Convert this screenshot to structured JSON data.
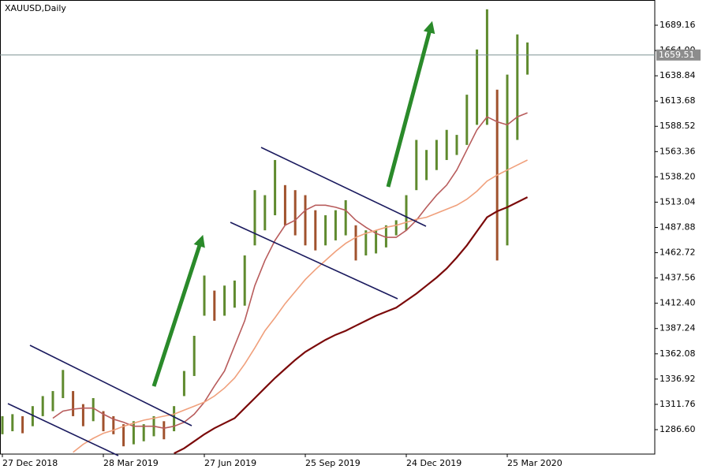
{
  "chart_data": {
    "type": "price-bars",
    "title": "XAUUSD,Daily",
    "categories": [
      "27 Dec 2018",
      null,
      null,
      null,
      null,
      null,
      null,
      null,
      null,
      null,
      "28 Mar 2019",
      null,
      null,
      null,
      null,
      null,
      null,
      null,
      null,
      null,
      "27 Jun 2019",
      null,
      null,
      null,
      null,
      null,
      null,
      null,
      null,
      null,
      "25 Sep 2019",
      null,
      null,
      null,
      null,
      null,
      null,
      null,
      null,
      null,
      "24 Dec 2019",
      null,
      null,
      null,
      null,
      null,
      null,
      null,
      null,
      null,
      "25 Mar 2020",
      null,
      null
    ],
    "high": [
      1300,
      1302,
      1300,
      1310,
      1320,
      1325,
      1346,
      1325,
      1312,
      1318,
      1305,
      1300,
      1292,
      1295,
      1292,
      1300,
      1295,
      1310,
      1345,
      1380,
      1440,
      1425,
      1430,
      1435,
      1460,
      1525,
      1520,
      1555,
      1530,
      1525,
      1520,
      1505,
      1500,
      1505,
      1515,
      1490,
      1485,
      1485,
      1490,
      1495,
      1520,
      1575,
      1565,
      1575,
      1585,
      1580,
      1620,
      1665,
      1705,
      1625,
      1640,
      1680,
      1672
    ],
    "low": [
      1282,
      1285,
      1283,
      1290,
      1300,
      1305,
      1318,
      1300,
      1290,
      1295,
      1285,
      1282,
      1270,
      1272,
      1275,
      1280,
      1277,
      1285,
      1320,
      1340,
      1400,
      1395,
      1400,
      1408,
      1410,
      1470,
      1485,
      1500,
      1490,
      1480,
      1470,
      1465,
      1470,
      1475,
      1480,
      1455,
      1460,
      1462,
      1468,
      1480,
      1485,
      1525,
      1535,
      1545,
      1555,
      1560,
      1570,
      1590,
      1590,
      1455,
      1470,
      1575,
      1640
    ],
    "up_color": "#5f8a2e",
    "down_color": "#a0522d",
    "series": [
      {
        "color": "#b85c5c",
        "values": [
          null,
          null,
          null,
          null,
          null,
          1298,
          1305,
          1307,
          1308,
          1308,
          1302,
          1297,
          1294,
          1290,
          1290,
          1290,
          1288,
          1290,
          1294,
          1302,
          1314,
          1330,
          1345,
          1370,
          1395,
          1430,
          1455,
          1475,
          1490,
          1495,
          1505,
          1510,
          1510,
          1508,
          1505,
          1495,
          1488,
          1482,
          1478,
          1478,
          1485,
          1495,
          1508,
          1520,
          1530,
          1545,
          1565,
          1585,
          1598,
          1593,
          1590,
          1598,
          1602
        ]
      },
      {
        "color": "#f0a07c",
        "values": [
          null,
          null,
          null,
          null,
          null,
          null,
          null,
          1264,
          1272,
          1278,
          1283,
          1286,
          1290,
          1293,
          1296,
          1298,
          1300,
          1302,
          1306,
          1310,
          1314,
          1320,
          1328,
          1338,
          1352,
          1368,
          1385,
          1398,
          1412,
          1424,
          1436,
          1446,
          1455,
          1464,
          1472,
          1478,
          1482,
          1485,
          1488,
          1490,
          1493,
          1496,
          1498,
          1502,
          1506,
          1510,
          1516,
          1524,
          1534,
          1540,
          1545,
          1550,
          1555
        ]
      },
      {
        "color": "#7b0a0a",
        "values": [
          null,
          null,
          null,
          null,
          null,
          null,
          null,
          null,
          null,
          null,
          null,
          null,
          null,
          null,
          null,
          null,
          null,
          1263,
          1268,
          1275,
          1282,
          1288,
          1293,
          1298,
          1308,
          1318,
          1328,
          1338,
          1347,
          1356,
          1364,
          1370,
          1376,
          1381,
          1385,
          1390,
          1395,
          1400,
          1404,
          1408,
          1415,
          1422,
          1430,
          1438,
          1447,
          1458,
          1470,
          1484,
          1498,
          1504,
          1508,
          1513,
          1518
        ]
      }
    ],
    "last_price": 1659.51,
    "ylim": [
      1262.27,
      1714.27
    ],
    "yticks": [
      {
        "value": 1286.6,
        "label": "1286.60"
      },
      1311.76,
      1336.92,
      1362.08,
      1387.24,
      {
        "value": 1412.4,
        "label": "1412.40"
      },
      1437.56,
      1462.72,
      1487.88,
      1513.04,
      {
        "value": 1538.2,
        "label": "1538.20"
      },
      1563.36,
      1588.52,
      1613.68,
      1638.84,
      {
        "value": 1664,
        "label": "1664.00"
      },
      1689.16
    ],
    "grid": false
  }
}
